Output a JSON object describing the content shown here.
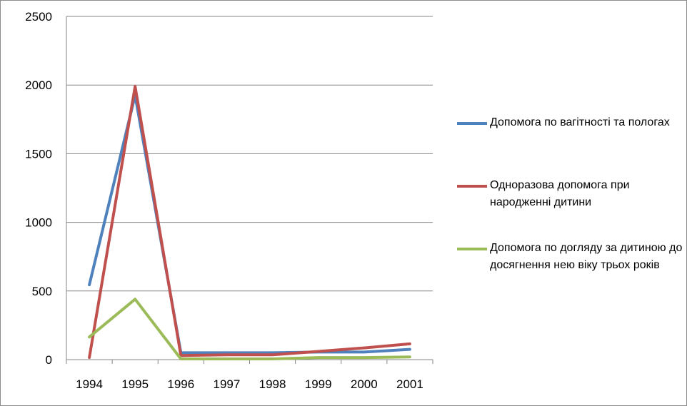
{
  "chart_data": {
    "type": "line",
    "categories": [
      "1994",
      "1995",
      "1996",
      "1997",
      "1998",
      "1999",
      "2000",
      "2001"
    ],
    "ylim": [
      0,
      2500
    ],
    "yticks": [
      "0",
      "500",
      "1000",
      "1500",
      "2000",
      "2500"
    ],
    "grid": true,
    "legend_position": "right",
    "series": [
      {
        "name": "Допомога по вагітності та пологах",
        "color": "#4f81bd",
        "values": [
          545,
          1925,
          50,
          50,
          50,
          55,
          55,
          75
        ]
      },
      {
        "name": "Одноразова допомога при народженні дитини",
        "color": "#c0504d",
        "values": [
          15,
          1990,
          30,
          35,
          35,
          60,
          85,
          115
        ]
      },
      {
        "name": "Допомога по догляду за дитиною до досягнення нею віку трьох років",
        "color": "#9bbb59",
        "values": [
          165,
          440,
          5,
          5,
          5,
          15,
          15,
          20
        ]
      }
    ]
  }
}
